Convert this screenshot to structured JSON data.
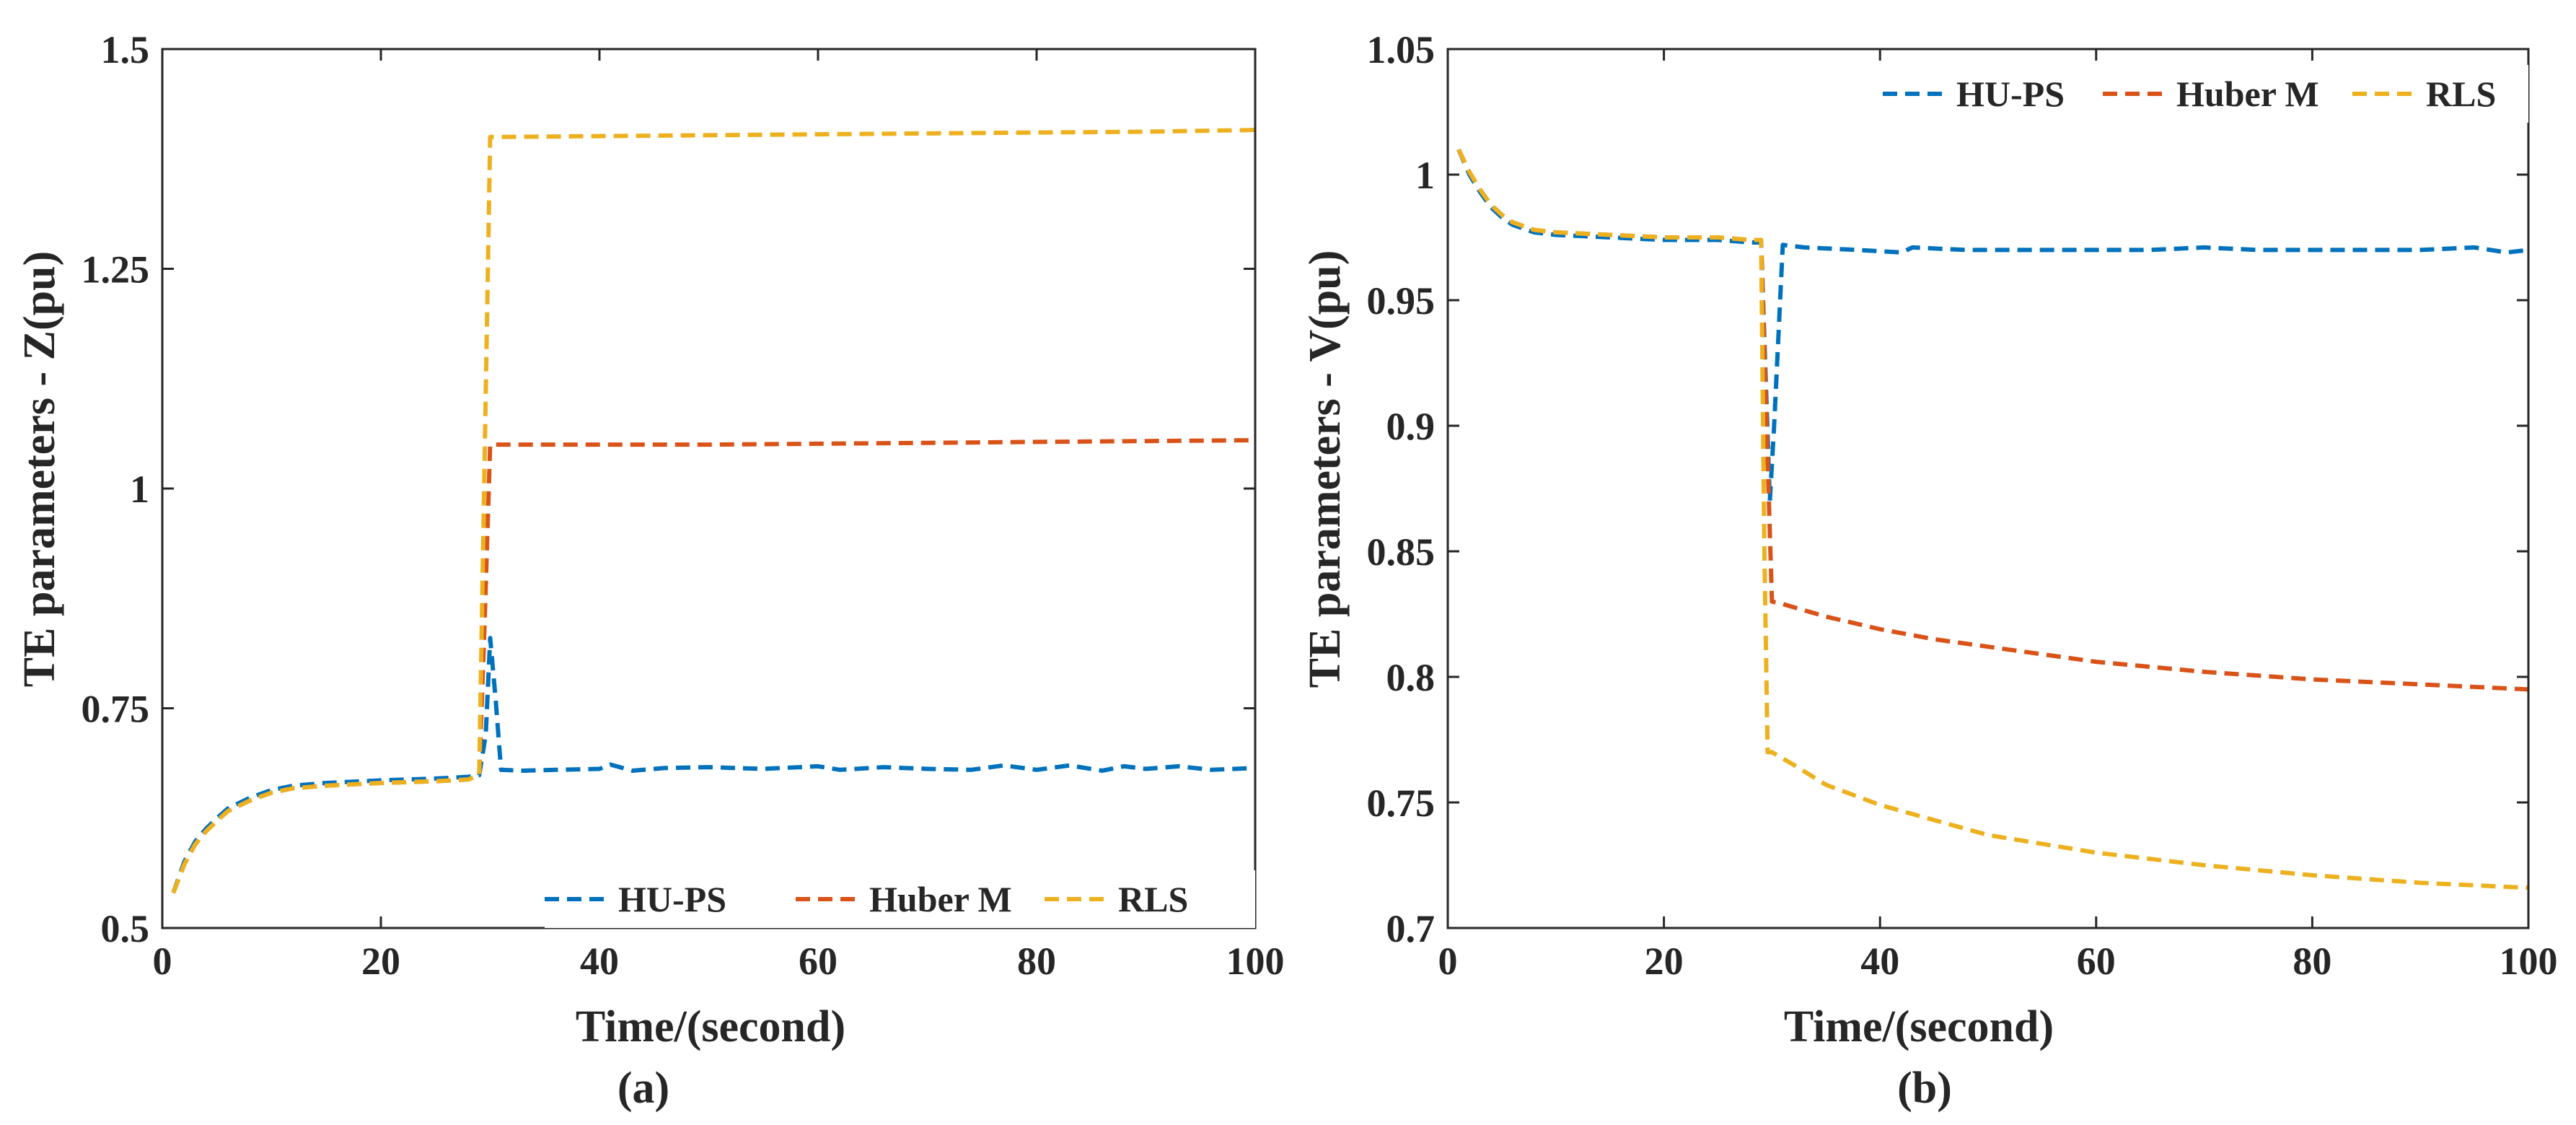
{
  "figure": {
    "colors": {
      "axis": "#262626",
      "background": "#ffffff"
    },
    "series_styles": [
      {
        "name": "HU-PS",
        "color": "#0072BD",
        "dash": "dashed"
      },
      {
        "name": "Huber M",
        "color": "#D95319",
        "dash": "dashed"
      },
      {
        "name": "RLS",
        "color": "#EDB120",
        "dash": "dashed"
      }
    ]
  },
  "chart_data": [
    {
      "type": "line",
      "caption": "(a)",
      "title": "",
      "xlabel": "Time/(second)",
      "ylabel": "TE parameters - Z(pu)",
      "xlim": [
        0,
        100
      ],
      "ylim": [
        0.5,
        1.5
      ],
      "xticks": [
        0,
        20,
        40,
        60,
        80,
        100
      ],
      "xtick_labels": [
        "0",
        "20",
        "40",
        "60",
        "80",
        "100"
      ],
      "yticks": [
        0.5,
        0.75,
        1,
        1.25,
        1.5
      ],
      "ytick_labels": [
        "0.5",
        "0.75",
        "1",
        "1.25",
        "1.5"
      ],
      "grid": false,
      "legend_position": "bottom-right",
      "legend": [
        "HU-PS",
        "Huber M",
        "RLS"
      ],
      "series": [
        {
          "name": "HU-PS",
          "x": [
            1,
            2,
            3,
            4,
            5,
            6,
            8,
            10,
            12,
            15,
            20,
            25,
            28,
            29,
            29.6,
            30,
            30.5,
            31,
            33,
            36,
            40,
            41,
            43,
            46,
            50,
            55,
            60,
            62,
            66,
            70,
            74,
            77,
            80,
            83,
            86,
            88,
            90,
            93,
            96,
            100
          ],
          "y": [
            0.54,
            0.575,
            0.598,
            0.613,
            0.625,
            0.636,
            0.648,
            0.657,
            0.662,
            0.665,
            0.668,
            0.67,
            0.672,
            0.674,
            0.72,
            0.83,
            0.76,
            0.68,
            0.679,
            0.68,
            0.681,
            0.686,
            0.679,
            0.682,
            0.683,
            0.681,
            0.684,
            0.68,
            0.683,
            0.681,
            0.68,
            0.685,
            0.68,
            0.685,
            0.679,
            0.684,
            0.681,
            0.684,
            0.68,
            0.682
          ]
        },
        {
          "name": "Huber M",
          "x": [
            1,
            2,
            3,
            4,
            5,
            6,
            8,
            10,
            12,
            15,
            20,
            25,
            28,
            29,
            29.5,
            30,
            31,
            40,
            50,
            60,
            70,
            80,
            90,
            100
          ],
          "y": [
            0.54,
            0.572,
            0.595,
            0.61,
            0.622,
            0.633,
            0.645,
            0.654,
            0.659,
            0.662,
            0.665,
            0.667,
            0.669,
            0.674,
            0.85,
            1.05,
            1.05,
            1.05,
            1.05,
            1.051,
            1.052,
            1.053,
            1.054,
            1.055
          ]
        },
        {
          "name": "RLS",
          "x": [
            1,
            2,
            3,
            4,
            5,
            6,
            8,
            10,
            12,
            15,
            20,
            25,
            28,
            29,
            30,
            31,
            40,
            50,
            60,
            70,
            80,
            90,
            100
          ],
          "y": [
            0.54,
            0.572,
            0.595,
            0.61,
            0.622,
            0.633,
            0.645,
            0.654,
            0.659,
            0.662,
            0.665,
            0.667,
            0.669,
            0.674,
            1.4,
            1.4,
            1.401,
            1.402,
            1.403,
            1.404,
            1.405,
            1.406,
            1.408
          ]
        }
      ]
    },
    {
      "type": "line",
      "caption": "(b)",
      "title": "",
      "xlabel": "Time/(second)",
      "ylabel": "TE parameters - V(pu)",
      "xlim": [
        0,
        100
      ],
      "ylim": [
        0.7,
        1.05
      ],
      "xticks": [
        0,
        20,
        40,
        60,
        80,
        100
      ],
      "xtick_labels": [
        "0",
        "20",
        "40",
        "60",
        "80",
        "100"
      ],
      "yticks": [
        0.7,
        0.75,
        0.8,
        0.85,
        0.9,
        0.95,
        1,
        1.05
      ],
      "ytick_labels": [
        "0.7",
        "0.75",
        "0.8",
        "0.85",
        "0.9",
        "0.95",
        "1",
        "1.05"
      ],
      "grid": false,
      "legend_position": "top-right",
      "legend": [
        "HU-PS",
        "Huber M",
        "RLS"
      ],
      "series": [
        {
          "name": "HU-PS",
          "x": [
            1,
            2,
            3,
            4,
            5,
            6,
            8,
            10,
            15,
            20,
            25,
            28,
            29,
            29.8,
            30.2,
            31,
            33,
            38,
            42,
            43,
            48,
            55,
            60,
            65,
            70,
            75,
            80,
            85,
            90,
            95,
            98,
            100
          ],
          "y": [
            1.01,
            1.0,
            0.993,
            0.987,
            0.983,
            0.98,
            0.977,
            0.976,
            0.975,
            0.974,
            0.974,
            0.973,
            0.973,
            0.87,
            0.9,
            0.972,
            0.971,
            0.97,
            0.969,
            0.971,
            0.97,
            0.97,
            0.97,
            0.97,
            0.971,
            0.97,
            0.97,
            0.97,
            0.97,
            0.971,
            0.969,
            0.97
          ]
        },
        {
          "name": "Huber M",
          "x": [
            1,
            2,
            3,
            4,
            5,
            6,
            8,
            10,
            15,
            20,
            25,
            28,
            29,
            29.5,
            30,
            31,
            35,
            40,
            45,
            50,
            60,
            70,
            80,
            90,
            100
          ],
          "y": [
            1.01,
            1.001,
            0.994,
            0.988,
            0.984,
            0.981,
            0.978,
            0.977,
            0.976,
            0.975,
            0.975,
            0.974,
            0.974,
            0.9,
            0.83,
            0.829,
            0.824,
            0.819,
            0.815,
            0.812,
            0.806,
            0.802,
            0.799,
            0.797,
            0.795
          ]
        },
        {
          "name": "RLS",
          "x": [
            1,
            2,
            3,
            4,
            5,
            6,
            8,
            10,
            15,
            20,
            25,
            28,
            29,
            29.3,
            29.6,
            30,
            32,
            35,
            40,
            45,
            50,
            60,
            70,
            80,
            90,
            100
          ],
          "y": [
            1.01,
            1.001,
            0.994,
            0.988,
            0.984,
            0.981,
            0.978,
            0.977,
            0.976,
            0.975,
            0.975,
            0.974,
            0.974,
            0.85,
            0.77,
            0.77,
            0.765,
            0.757,
            0.749,
            0.743,
            0.737,
            0.73,
            0.725,
            0.721,
            0.718,
            0.716
          ]
        }
      ]
    }
  ]
}
